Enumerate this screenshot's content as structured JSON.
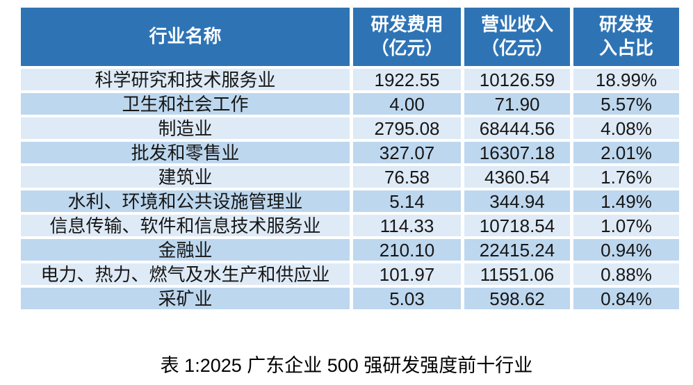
{
  "colors": {
    "header_bg": "#2E74B5",
    "header_text": "#FFFFFF",
    "row_light": "#DEEAF6",
    "row_dark": "#BDD7EE",
    "cell_text": "#161616"
  },
  "table": {
    "columns": [
      {
        "label": "行业名称"
      },
      {
        "label": "研发费用\n（亿元）"
      },
      {
        "label": "营业收入\n（亿元）"
      },
      {
        "label": "研发投\n入占比"
      }
    ],
    "rows": [
      {
        "industry": "科学研究和技术服务业",
        "rd_expense": "1922.55",
        "revenue": "10126.59",
        "rd_ratio": "18.99%"
      },
      {
        "industry": "卫生和社会工作",
        "rd_expense": "4.00",
        "revenue": "71.90",
        "rd_ratio": "5.57%"
      },
      {
        "industry": "制造业",
        "rd_expense": "2795.08",
        "revenue": "68444.56",
        "rd_ratio": "4.08%"
      },
      {
        "industry": "批发和零售业",
        "rd_expense": "327.07",
        "revenue": "16307.18",
        "rd_ratio": "2.01%"
      },
      {
        "industry": "建筑业",
        "rd_expense": "76.58",
        "revenue": "4360.54",
        "rd_ratio": "1.76%"
      },
      {
        "industry": "水利、环境和公共设施管理业",
        "rd_expense": "5.14",
        "revenue": "344.94",
        "rd_ratio": "1.49%"
      },
      {
        "industry": "信息传输、软件和信息技术服务业",
        "rd_expense": "114.33",
        "revenue": "10718.54",
        "rd_ratio": "1.07%"
      },
      {
        "industry": "金融业",
        "rd_expense": "210.10",
        "revenue": "22415.24",
        "rd_ratio": "0.94%"
      },
      {
        "industry": "电力、热力、燃气及水生产和供应业",
        "rd_expense": "101.97",
        "revenue": "11551.06",
        "rd_ratio": "0.88%"
      },
      {
        "industry": "采矿业",
        "rd_expense": "5.03",
        "revenue": "598.62",
        "rd_ratio": "0.84%"
      }
    ]
  },
  "caption": "表 1:2025 广东企业 500 强研发强度前十行业",
  "chart_data": {
    "type": "table",
    "title": "表 1:2025 广东企业 500 强研发强度前十行业",
    "columns": [
      "行业名称",
      "研发费用（亿元）",
      "营业收入（亿元）",
      "研发投入占比"
    ],
    "rows": [
      [
        "科学研究和技术服务业",
        1922.55,
        10126.59,
        "18.99%"
      ],
      [
        "卫生和社会工作",
        4.0,
        71.9,
        "5.57%"
      ],
      [
        "制造业",
        2795.08,
        68444.56,
        "4.08%"
      ],
      [
        "批发和零售业",
        327.07,
        16307.18,
        "2.01%"
      ],
      [
        "建筑业",
        76.58,
        4360.54,
        "1.76%"
      ],
      [
        "水利、环境和公共设施管理业",
        5.14,
        344.94,
        "1.49%"
      ],
      [
        "信息传输、软件和信息技术服务业",
        114.33,
        10718.54,
        "1.07%"
      ],
      [
        "金融业",
        210.1,
        22415.24,
        "0.94%"
      ],
      [
        "电力、热力、燃气及水生产和供应业",
        101.97,
        11551.06,
        "0.88%"
      ],
      [
        "采矿业",
        5.03,
        598.62,
        "0.84%"
      ]
    ]
  }
}
